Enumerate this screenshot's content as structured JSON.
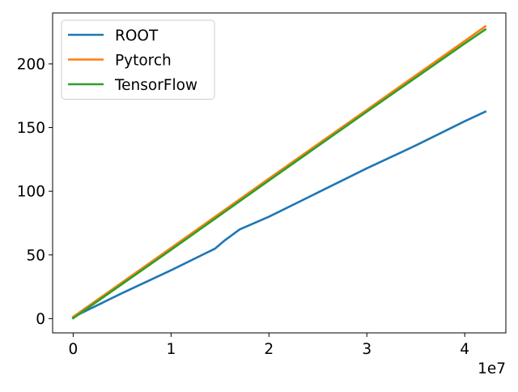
{
  "chart_data": {
    "type": "line",
    "title": "",
    "xlabel": "",
    "ylabel": "",
    "x_offset_label": "1e7",
    "xlim": [
      -2100000,
      44200000
    ],
    "ylim": [
      -11.2,
      240
    ],
    "xticks": [
      0,
      10000000,
      20000000,
      30000000,
      40000000
    ],
    "xtick_labels": [
      "0",
      "1",
      "2",
      "3",
      "4"
    ],
    "yticks": [
      0,
      50,
      100,
      150,
      200
    ],
    "ytick_labels": [
      "0",
      "50",
      "100",
      "150",
      "200"
    ],
    "grid": false,
    "legend_position": "top-left",
    "series": [
      {
        "name": "ROOT",
        "color": "#1f77b4",
        "x": [
          0,
          5000000,
          10000000,
          14500000,
          15500000,
          17000000,
          20000000,
          25000000,
          30000000,
          35000000,
          40000000,
          42100000
        ],
        "y": [
          1.2,
          20,
          38,
          55,
          61.5,
          70,
          80,
          99,
          118,
          136,
          155,
          162.5
        ]
      },
      {
        "name": "Pytorch",
        "color": "#ff7f0e",
        "x": [
          0,
          10000000,
          20000000,
          30000000,
          40000000,
          42100000
        ],
        "y": [
          1.4,
          55.5,
          110,
          164,
          218,
          229.5
        ]
      },
      {
        "name": "TensorFlow",
        "color": "#2ca02c",
        "x": [
          0,
          10000000,
          20000000,
          30000000,
          40000000,
          42100000
        ],
        "y": [
          0.3,
          54,
          108.5,
          162.5,
          216,
          227
        ]
      }
    ]
  }
}
